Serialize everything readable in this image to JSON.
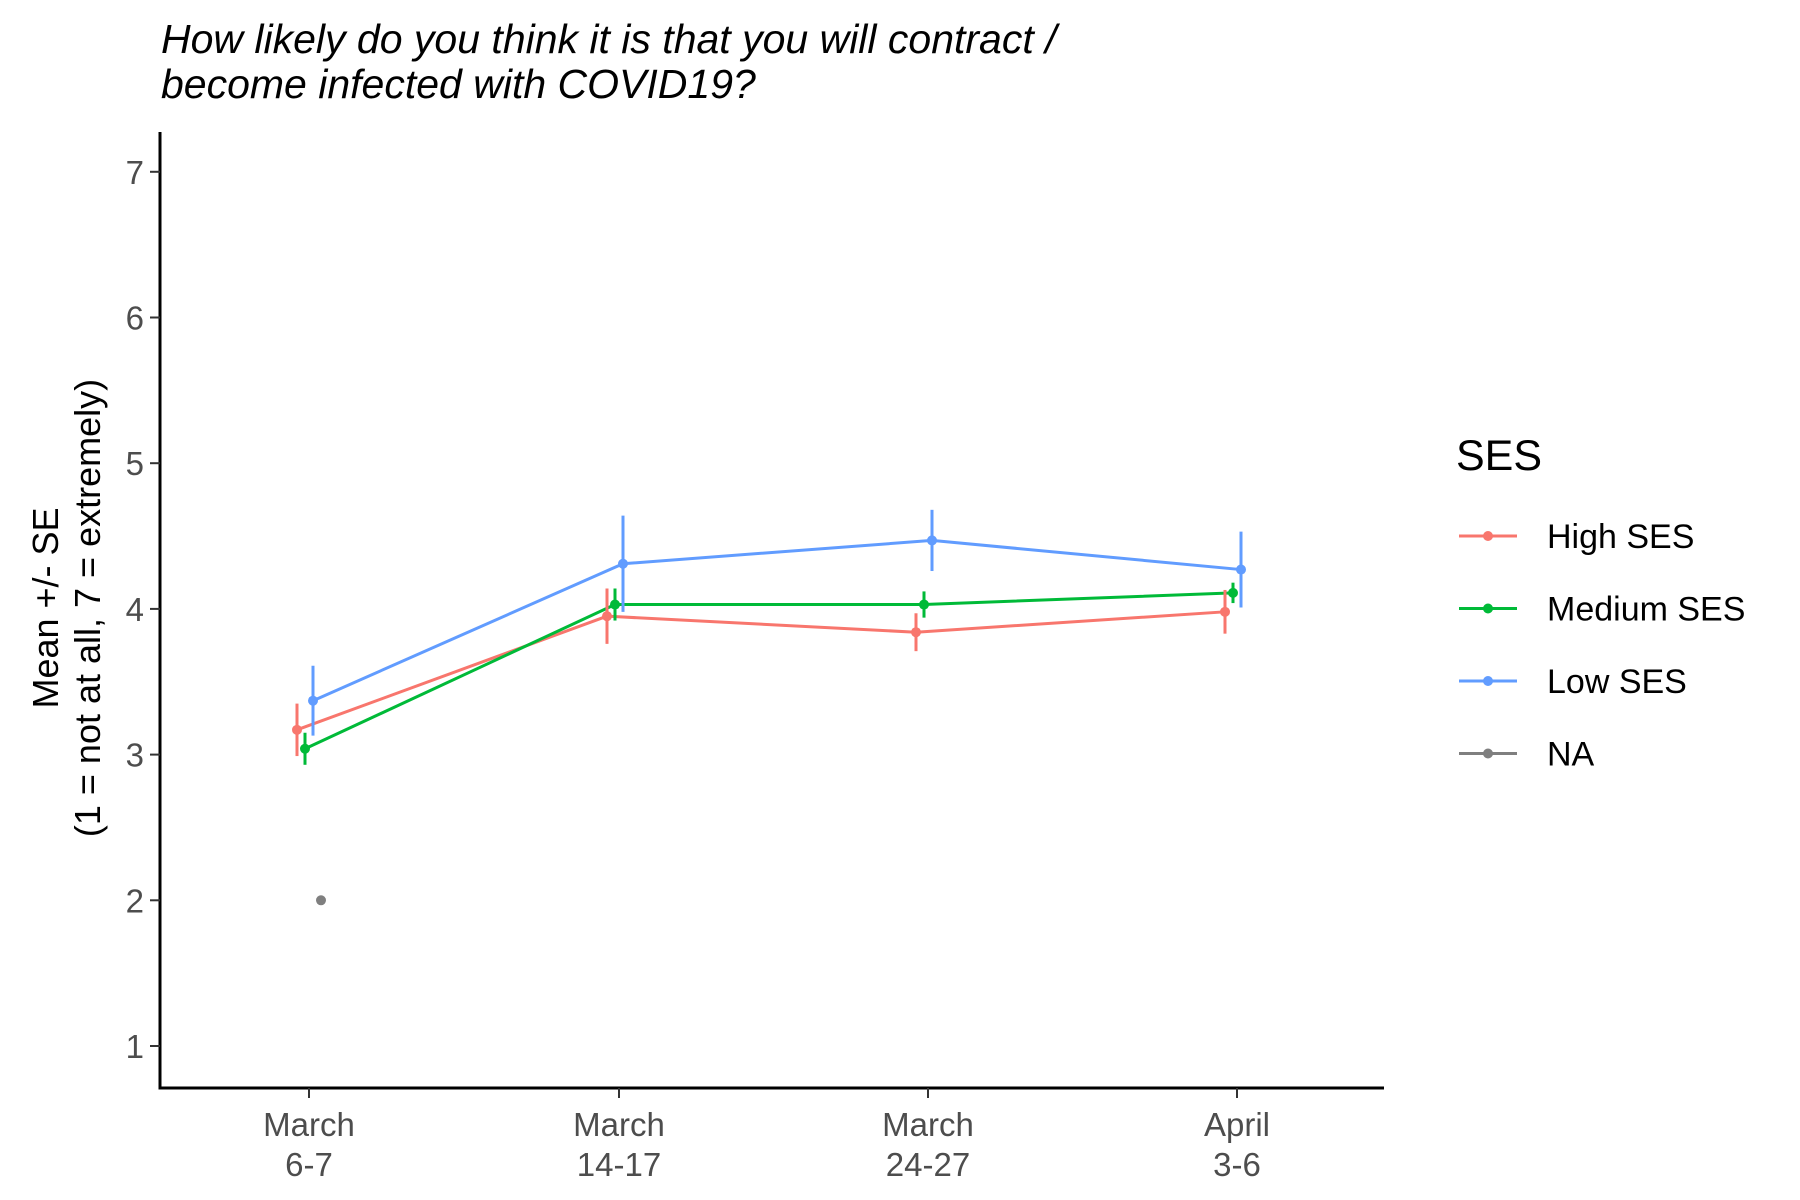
{
  "chart_data": {
    "type": "line",
    "title": [
      "How likely do you think it is that you will contract /",
      "become infected with COVID19?"
    ],
    "ylabel": [
      "Mean +/- SE",
      "(1 = not at all, 7 = extremely)"
    ],
    "xlabel": "",
    "categories": [
      [
        "March",
        "6-7"
      ],
      [
        "March",
        "14-17"
      ],
      [
        "March",
        "24-27"
      ],
      [
        "April",
        "3-6"
      ]
    ],
    "yticks": [
      "1",
      "2",
      "3",
      "4",
      "5",
      "6",
      "7"
    ],
    "ylim": [
      0.8,
      7.3
    ],
    "grid": false,
    "legend": {
      "title": "SES",
      "position": "right"
    },
    "series": [
      {
        "name": "High SES",
        "color": "#F8766D",
        "values": [
          3.17,
          3.95,
          3.84,
          3.98
        ],
        "se": [
          0.18,
          0.19,
          0.13,
          0.15
        ]
      },
      {
        "name": "Medium SES",
        "color": "#00BA38",
        "values": [
          3.04,
          4.03,
          4.03,
          4.11
        ],
        "se": [
          0.11,
          0.11,
          0.09,
          0.07
        ]
      },
      {
        "name": "Low SES",
        "color": "#619CFF",
        "values": [
          3.37,
          4.31,
          4.47,
          4.27
        ],
        "se": [
          0.24,
          0.33,
          0.21,
          0.26
        ]
      },
      {
        "name": "NA",
        "color": "#7F7F7F",
        "values": [
          2.0,
          null,
          null,
          null
        ],
        "se": [
          0,
          null,
          null,
          null
        ]
      }
    ]
  }
}
